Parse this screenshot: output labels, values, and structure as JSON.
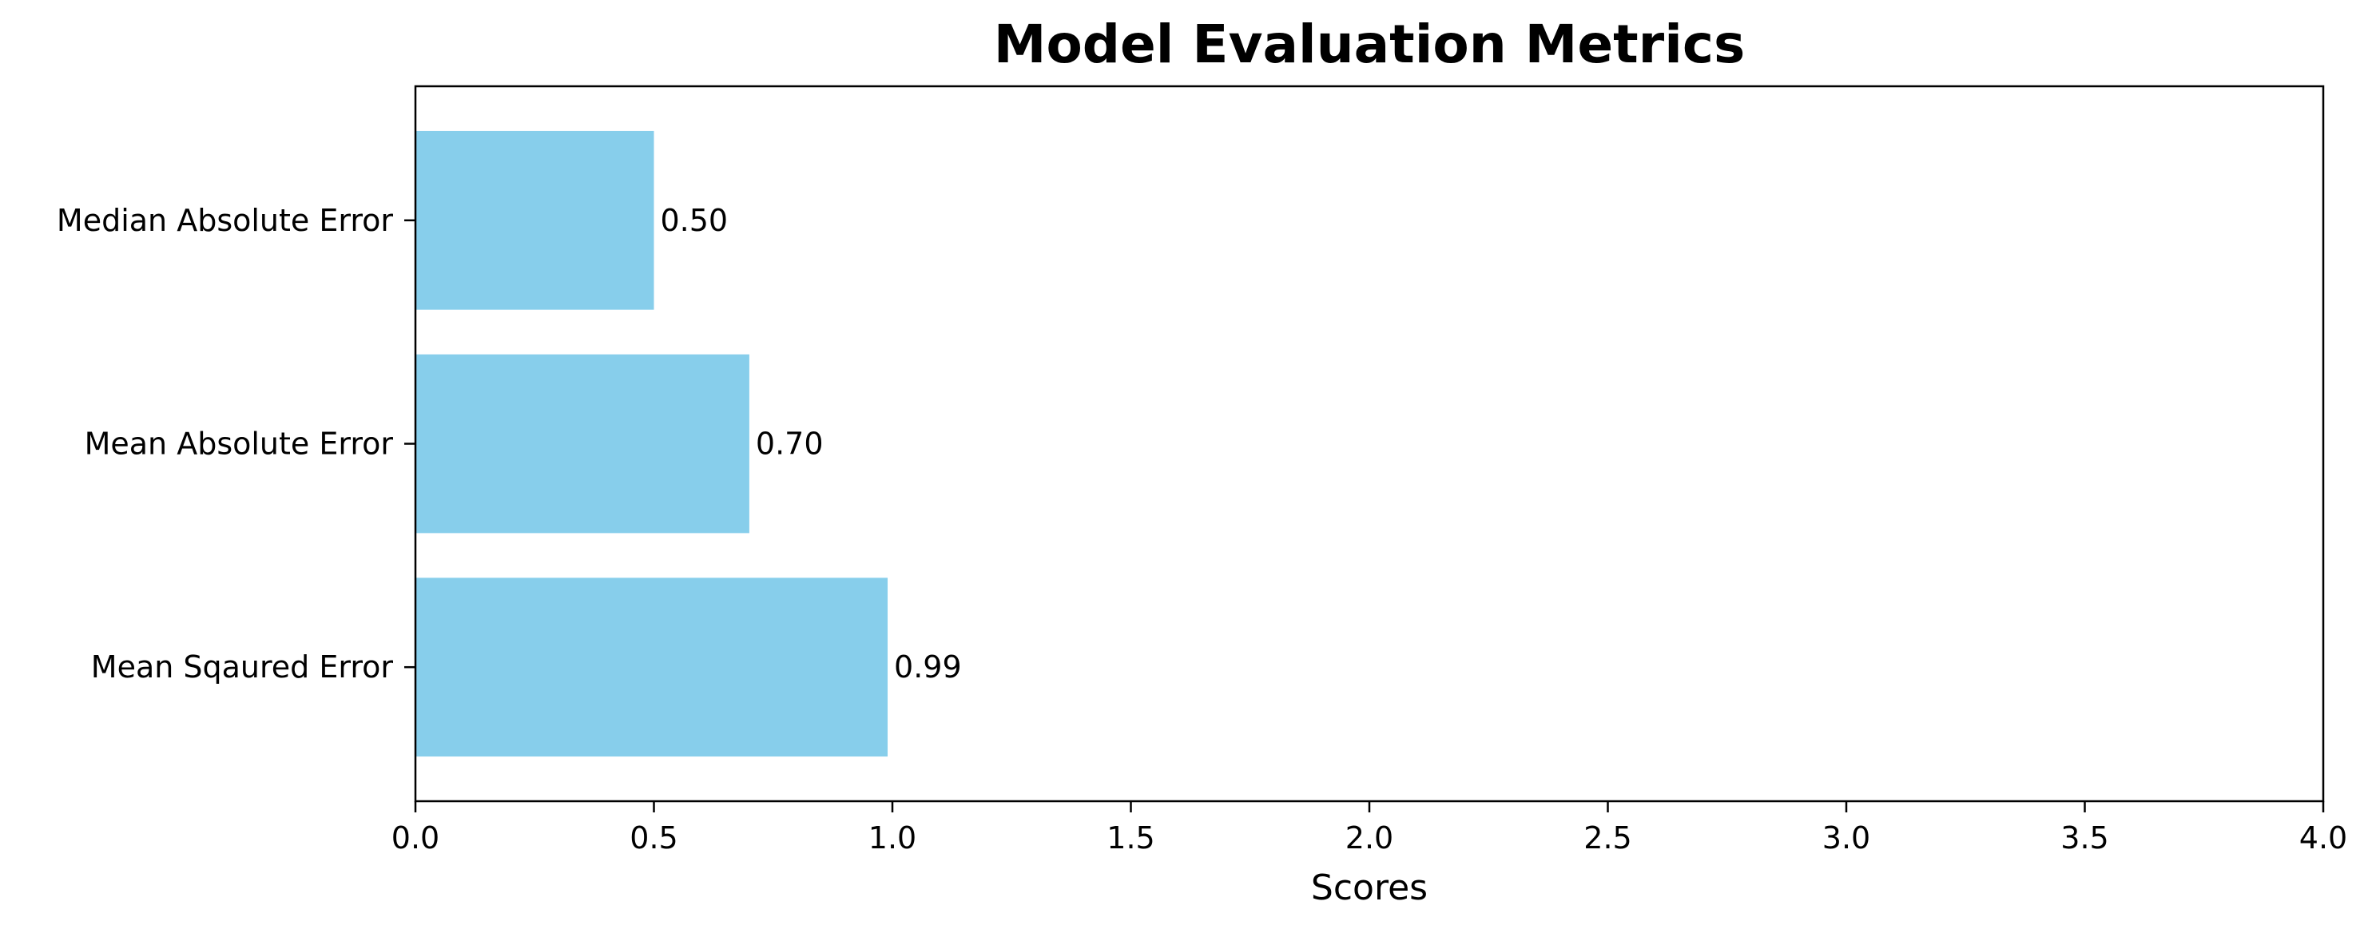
{
  "chart_data": {
    "type": "bar",
    "orientation": "horizontal",
    "title": "Model Evaluation Metrics",
    "xlabel": "Scores",
    "ylabel": "",
    "categories": [
      "Mean Sqaured Error",
      "Mean Absolute Error",
      "Median Absolute Error"
    ],
    "values": [
      0.99,
      0.7,
      0.5
    ],
    "value_labels": [
      "0.99",
      "0.70",
      "0.50"
    ],
    "xlim": [
      0,
      4
    ],
    "xticks": [
      0.0,
      0.5,
      1.0,
      1.5,
      2.0,
      2.5,
      3.0,
      3.5,
      4.0
    ],
    "xtick_labels": [
      "0.0",
      "0.5",
      "1.0",
      "1.5",
      "2.0",
      "2.5",
      "3.0",
      "3.5",
      "4.0"
    ],
    "grid": false,
    "bar_color": "#87CEEB"
  }
}
